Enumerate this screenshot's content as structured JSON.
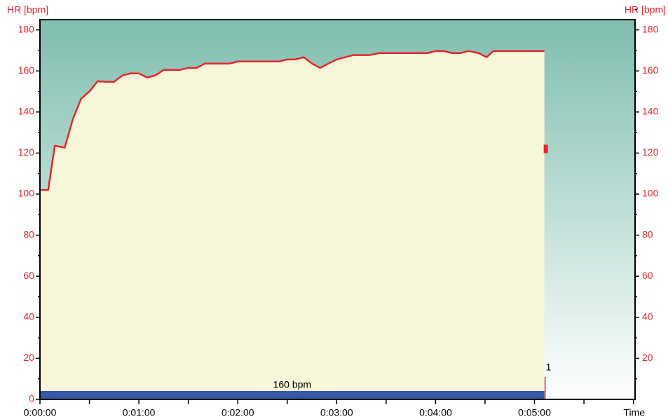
{
  "chart_data": {
    "type": "area",
    "y_axis_label": "HR [bpm]",
    "y2_axis_label": "HR [bpm]",
    "x_axis_label": "Time",
    "xlim": [
      0,
      361
    ],
    "xticks": [
      {
        "value": 0,
        "label": "0:00:00"
      },
      {
        "value": 60,
        "label": "0:01:00"
      },
      {
        "value": 120,
        "label": "0:02:00"
      },
      {
        "value": 180,
        "label": "0:03:00"
      },
      {
        "value": 240,
        "label": "0:04:00"
      },
      {
        "value": 300,
        "label": "0:05:00"
      }
    ],
    "ylim": [
      0,
      185
    ],
    "yticks": [
      0,
      20,
      40,
      60,
      80,
      100,
      120,
      140,
      160,
      180
    ],
    "y2lim": [
      0,
      185
    ],
    "y2ticks": [
      20,
      40,
      60,
      80,
      100,
      120,
      140,
      160,
      180
    ],
    "x": [
      0,
      5,
      9,
      15,
      20,
      25,
      30,
      35,
      40,
      45,
      50,
      55,
      60,
      65,
      70,
      75,
      80,
      85,
      90,
      95,
      100,
      115,
      120,
      145,
      150,
      155,
      160,
      165,
      170,
      175,
      180,
      190,
      200,
      206,
      235,
      240,
      245,
      250,
      255,
      260,
      266,
      271,
      275,
      306
    ],
    "series": [
      {
        "name": "HR",
        "color": "#e8262a",
        "fill": "#f8f6d8",
        "values": [
          102,
          102,
          123.6,
          122.6,
          136.6,
          146.5,
          150,
          155,
          154.7,
          154.7,
          157.8,
          158.8,
          158.8,
          156.8,
          157.8,
          160.5,
          160.5,
          160.5,
          161.5,
          161.5,
          163.6,
          163.6,
          164.6,
          164.6,
          165.6,
          165.6,
          166.7,
          163.6,
          161.5,
          163.6,
          165.6,
          167.7,
          167.7,
          168.7,
          168.7,
          169.7,
          169.7,
          168.7,
          168.7,
          169.7,
          168.7,
          166.7,
          169.7,
          169.7
        ]
      }
    ],
    "zone_label": "160 bpm",
    "lap_label": "1",
    "lap_marker_value": 122
  }
}
